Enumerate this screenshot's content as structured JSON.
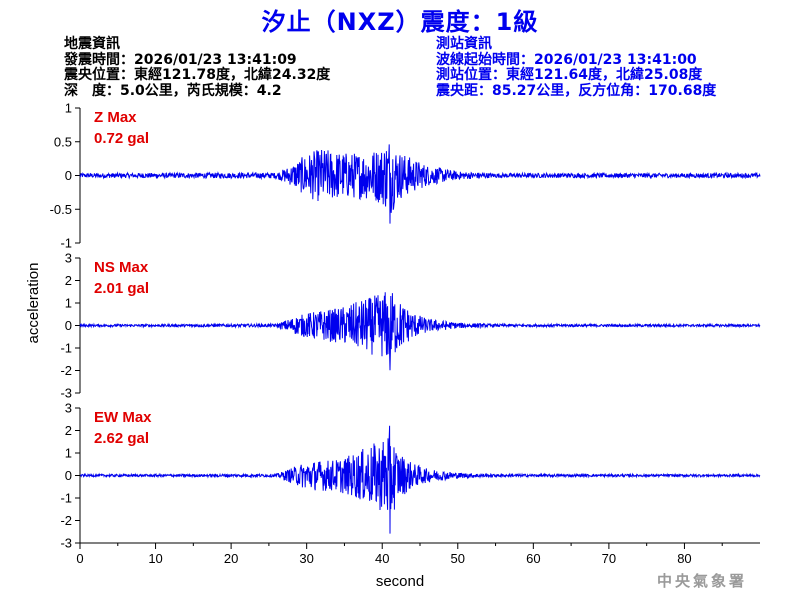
{
  "title": "汐止（NXZ）震度：1級",
  "quake_info": {
    "heading": "地震資訊",
    "time": "發震時間：2026/01/23 13:41:09",
    "epicenter": "震央位置：東經121.78度，北緯24.32度",
    "depth": "深　度：5.0公里，芮氏規模：4.2"
  },
  "station_info": {
    "heading": "測站資訊",
    "wave_start": "波線起始時間：2026/01/23 13:41:00",
    "location": "測站位置：東經121.64度，北緯25.08度",
    "distance": "震央距：85.27公里，反方位角：170.68度"
  },
  "agency": "中央氣象署",
  "colors": {
    "trace": "#0000ee",
    "max_label": "#e00000",
    "title": "#0000ee"
  },
  "chart_data": {
    "type": "line",
    "xlabel": "second",
    "ylabel": "acceleration",
    "xlim": [
      0,
      90
    ],
    "x_ticks": [
      0,
      10,
      20,
      30,
      40,
      50,
      60,
      70,
      80
    ],
    "grid": false,
    "panels": [
      {
        "name": "Z",
        "max_name": "Z Max",
        "max_value": "0.72 gal",
        "ylim": [
          -1,
          1
        ],
        "y_ticks": [
          1,
          0.5,
          0,
          -0.5,
          -1
        ],
        "envelope": {
          "x": [
            0,
            26,
            28,
            30,
            32,
            34,
            36,
            38,
            40,
            41,
            42,
            44,
            46,
            50,
            55,
            90
          ],
          "amp": [
            0.04,
            0.05,
            0.18,
            0.38,
            0.48,
            0.42,
            0.4,
            0.42,
            0.5,
            0.72,
            0.45,
            0.3,
            0.18,
            0.07,
            0.04,
            0.04
          ]
        }
      },
      {
        "name": "NS",
        "max_name": "NS Max",
        "max_value": "2.01 gal",
        "ylim": [
          -3,
          3
        ],
        "y_ticks": [
          3,
          2,
          1,
          0,
          -1,
          -2,
          -3
        ],
        "envelope": {
          "x": [
            0,
            26,
            28,
            30,
            32,
            34,
            36,
            38,
            40,
            41,
            42,
            44,
            46,
            50,
            55,
            90
          ],
          "amp": [
            0.06,
            0.08,
            0.4,
            0.65,
            0.8,
            0.9,
            1.15,
            1.45,
            1.7,
            2.01,
            1.4,
            0.7,
            0.35,
            0.15,
            0.07,
            0.06
          ]
        }
      },
      {
        "name": "EW",
        "max_name": "EW Max",
        "max_value": "2.62 gal",
        "ylim": [
          -3,
          3
        ],
        "y_ticks": [
          3,
          2,
          1,
          0,
          -1,
          -2,
          -3
        ],
        "envelope": {
          "x": [
            0,
            26,
            28,
            30,
            32,
            34,
            36,
            38,
            40,
            41,
            42,
            44,
            46,
            50,
            55,
            90
          ],
          "amp": [
            0.06,
            0.08,
            0.4,
            0.75,
            0.8,
            0.85,
            1.1,
            1.5,
            1.9,
            2.62,
            1.3,
            0.65,
            0.35,
            0.15,
            0.07,
            0.06
          ]
        }
      }
    ]
  }
}
